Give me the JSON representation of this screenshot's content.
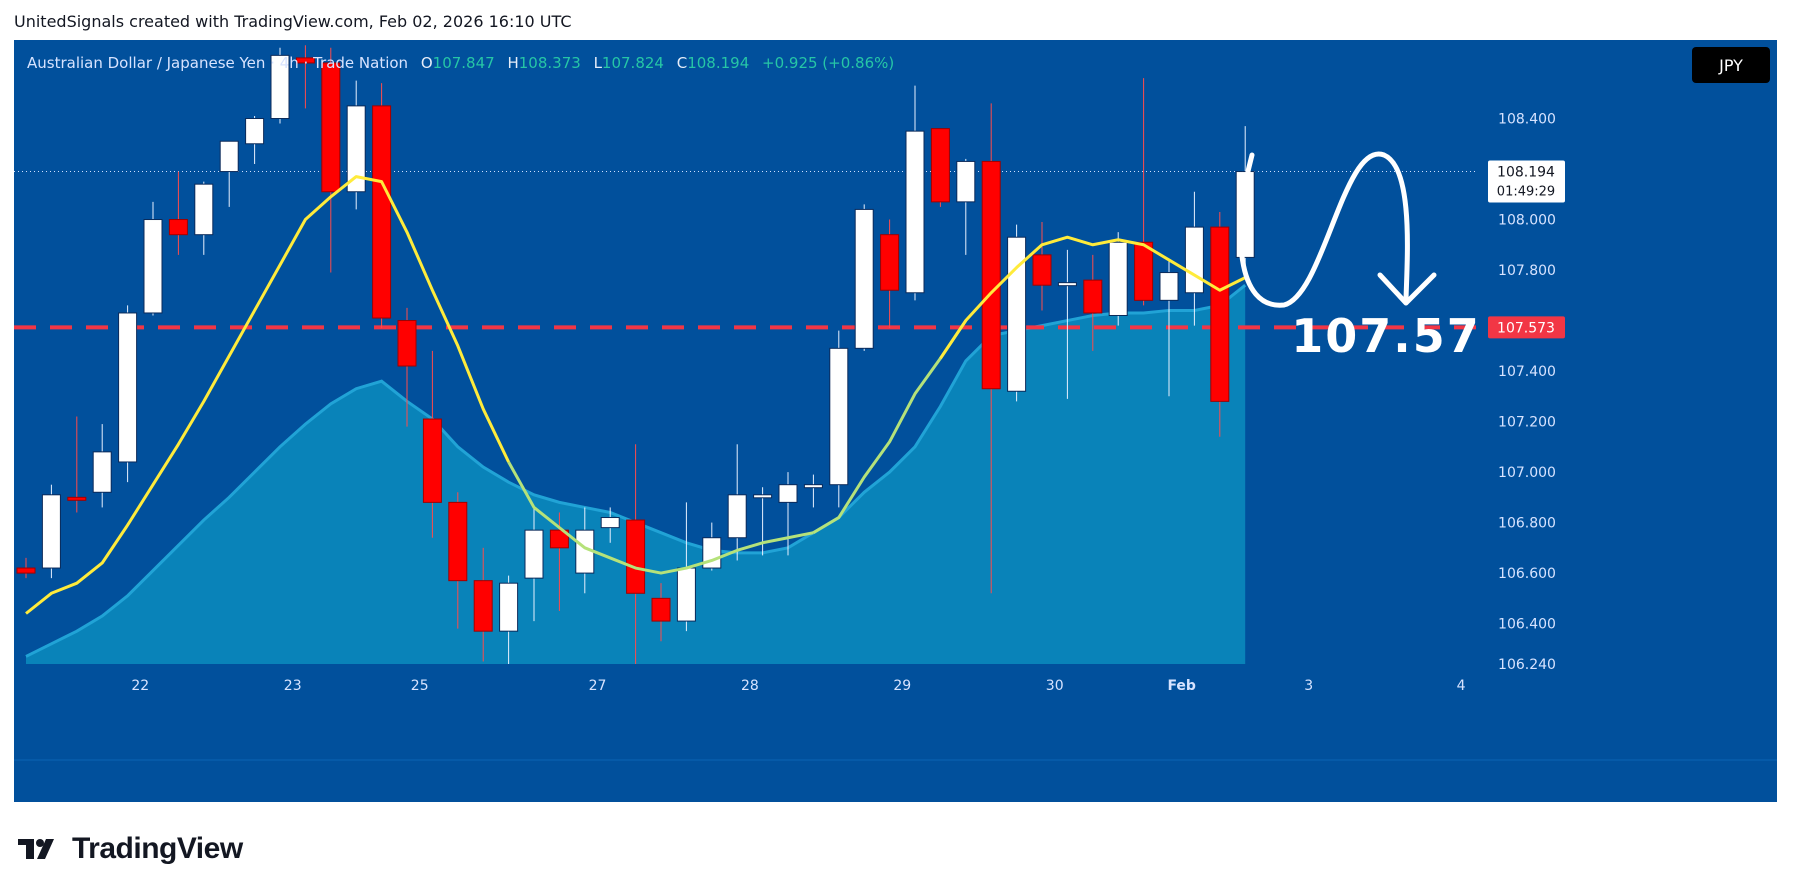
{
  "header": {
    "text": "UnitedSignals created with TradingView.com, Feb 02, 2026 16:10 UTC"
  },
  "legend": {
    "symbol": "Australian Dollar / Japanese Yen · 4h · Trade Nation",
    "open_label": "O",
    "open": "107.847",
    "high_label": "H",
    "high": "108.373",
    "low_label": "L",
    "low": "107.824",
    "close_label": "C",
    "close": "108.194",
    "change": "+0.925 (+0.86%)"
  },
  "currency_button": "JPY",
  "price_label": {
    "price": "108.194",
    "countdown": "01:49:29"
  },
  "level_label": "107.573",
  "annotation_text": "107.57",
  "footer": {
    "logo_text": "TradingView"
  },
  "colors": {
    "background": "#01509c",
    "bull": "#ffffff",
    "bear": "#ff0000",
    "fast_ma": "#ffeb3b",
    "area_fill": "#0a88bd",
    "level_line": "#f23645"
  },
  "chart_data": {
    "type": "candlestick",
    "y_range": [
      106.24,
      108.6
    ],
    "y_ticks": [
      "108.400",
      "108.000",
      "107.800",
      "107.400",
      "107.200",
      "107.000",
      "106.800",
      "106.600",
      "106.400",
      "106.240"
    ],
    "x_ticks": [
      {
        "index": 4.5,
        "label": "22"
      },
      {
        "index": 10.5,
        "label": "23"
      },
      {
        "index": 15.5,
        "label": "25"
      },
      {
        "index": 22.5,
        "label": "27"
      },
      {
        "index": 28.5,
        "label": "28"
      },
      {
        "index": 34.5,
        "label": "29"
      },
      {
        "index": 40.5,
        "label": "30"
      },
      {
        "index": 45.5,
        "label": "Feb"
      },
      {
        "index": 50.5,
        "label": "3"
      },
      {
        "index": 56.5,
        "label": "4"
      }
    ],
    "level": 107.573,
    "candles": [
      {
        "o": 106.62,
        "h": 106.66,
        "l": 106.58,
        "c": 106.6
      },
      {
        "o": 106.62,
        "h": 106.95,
        "l": 106.58,
        "c": 106.91
      },
      {
        "o": 106.9,
        "h": 107.22,
        "l": 106.84,
        "c": 106.89
      },
      {
        "o": 106.92,
        "h": 107.19,
        "l": 106.86,
        "c": 107.08
      },
      {
        "o": 107.04,
        "h": 107.66,
        "l": 106.96,
        "c": 107.63
      },
      {
        "o": 107.63,
        "h": 108.07,
        "l": 107.62,
        "c": 108.0
      },
      {
        "o": 108.0,
        "h": 108.19,
        "l": 107.86,
        "c": 107.94
      },
      {
        "o": 107.94,
        "h": 108.15,
        "l": 107.86,
        "c": 108.14
      },
      {
        "o": 108.19,
        "h": 108.31,
        "l": 108.05,
        "c": 108.31
      },
      {
        "o": 108.3,
        "h": 108.41,
        "l": 108.22,
        "c": 108.4
      },
      {
        "o": 108.4,
        "h": 108.68,
        "l": 108.38,
        "c": 108.65
      },
      {
        "o": 108.64,
        "h": 108.69,
        "l": 108.44,
        "c": 108.62
      },
      {
        "o": 108.62,
        "h": 108.68,
        "l": 107.79,
        "c": 108.11
      },
      {
        "o": 108.11,
        "h": 108.55,
        "l": 108.04,
        "c": 108.45
      },
      {
        "o": 108.45,
        "h": 108.54,
        "l": 107.57,
        "c": 107.61
      },
      {
        "o": 107.6,
        "h": 107.65,
        "l": 107.18,
        "c": 107.42
      },
      {
        "o": 107.21,
        "h": 107.48,
        "l": 106.74,
        "c": 106.88
      },
      {
        "o": 106.88,
        "h": 106.92,
        "l": 106.38,
        "c": 106.57
      },
      {
        "o": 106.57,
        "h": 106.7,
        "l": 106.25,
        "c": 106.37
      },
      {
        "o": 106.37,
        "h": 106.59,
        "l": 106.24,
        "c": 106.56
      },
      {
        "o": 106.58,
        "h": 106.86,
        "l": 106.41,
        "c": 106.77
      },
      {
        "o": 106.77,
        "h": 106.84,
        "l": 106.45,
        "c": 106.7
      },
      {
        "o": 106.6,
        "h": 106.86,
        "l": 106.52,
        "c": 106.77
      },
      {
        "o": 106.78,
        "h": 106.86,
        "l": 106.72,
        "c": 106.82
      },
      {
        "o": 106.81,
        "h": 107.11,
        "l": 106.24,
        "c": 106.52
      },
      {
        "o": 106.5,
        "h": 106.56,
        "l": 106.33,
        "c": 106.41
      },
      {
        "o": 106.41,
        "h": 106.88,
        "l": 106.37,
        "c": 106.62
      },
      {
        "o": 106.62,
        "h": 106.8,
        "l": 106.61,
        "c": 106.74
      },
      {
        "o": 106.74,
        "h": 107.11,
        "l": 106.65,
        "c": 106.91
      },
      {
        "o": 106.9,
        "h": 106.94,
        "l": 106.67,
        "c": 106.91
      },
      {
        "o": 106.88,
        "h": 107.0,
        "l": 106.67,
        "c": 106.95
      },
      {
        "o": 106.94,
        "h": 106.99,
        "l": 106.86,
        "c": 106.95
      },
      {
        "o": 106.95,
        "h": 107.56,
        "l": 106.86,
        "c": 107.49
      },
      {
        "o": 107.49,
        "h": 108.06,
        "l": 107.48,
        "c": 108.04
      },
      {
        "o": 107.94,
        "h": 108.0,
        "l": 107.57,
        "c": 107.72
      },
      {
        "o": 107.71,
        "h": 108.53,
        "l": 107.68,
        "c": 108.35
      },
      {
        "o": 108.36,
        "h": 108.36,
        "l": 108.05,
        "c": 108.07
      },
      {
        "o": 108.07,
        "h": 108.24,
        "l": 107.86,
        "c": 108.23
      },
      {
        "o": 108.23,
        "h": 108.46,
        "l": 106.52,
        "c": 107.33
      },
      {
        "o": 107.32,
        "h": 107.98,
        "l": 107.28,
        "c": 107.93
      },
      {
        "o": 107.86,
        "h": 107.99,
        "l": 107.64,
        "c": 107.74
      },
      {
        "o": 107.74,
        "h": 107.88,
        "l": 107.29,
        "c": 107.75
      },
      {
        "o": 107.76,
        "h": 107.86,
        "l": 107.48,
        "c": 107.63
      },
      {
        "o": 107.62,
        "h": 107.95,
        "l": 107.58,
        "c": 107.91
      },
      {
        "o": 107.91,
        "h": 108.56,
        "l": 107.66,
        "c": 107.68
      },
      {
        "o": 107.68,
        "h": 107.84,
        "l": 107.3,
        "c": 107.79
      },
      {
        "o": 107.71,
        "h": 108.11,
        "l": 107.58,
        "c": 107.97
      },
      {
        "o": 107.97,
        "h": 108.03,
        "l": 107.14,
        "c": 107.28
      },
      {
        "o": 107.85,
        "h": 108.37,
        "l": 107.82,
        "c": 108.19
      }
    ],
    "fast_ma": [
      106.44,
      106.52,
      106.56,
      106.64,
      106.79,
      106.95,
      107.11,
      107.28,
      107.46,
      107.64,
      107.82,
      108.0,
      108.09,
      108.17,
      108.15,
      107.95,
      107.72,
      107.5,
      107.25,
      107.04,
      106.86,
      106.78,
      106.7,
      106.66,
      106.62,
      106.6,
      106.62,
      106.65,
      106.69,
      106.72,
      106.74,
      106.76,
      106.82,
      106.98,
      107.12,
      107.31,
      107.45,
      107.6,
      107.71,
      107.81,
      107.9,
      107.93,
      107.9,
      107.92,
      107.9,
      107.84,
      107.78,
      107.72,
      107.77
    ],
    "area_ma": [
      106.27,
      106.32,
      106.37,
      106.43,
      106.51,
      106.61,
      106.71,
      106.81,
      106.9,
      107.0,
      107.1,
      107.19,
      107.27,
      107.33,
      107.36,
      107.28,
      107.21,
      107.1,
      107.02,
      106.96,
      106.91,
      106.88,
      106.86,
      106.84,
      106.8,
      106.76,
      106.72,
      106.69,
      106.68,
      106.68,
      106.7,
      106.76,
      106.82,
      106.92,
      107.0,
      107.1,
      107.26,
      107.44,
      107.54,
      107.56,
      107.58,
      107.6,
      107.62,
      107.63,
      107.63,
      107.64,
      107.64,
      107.66,
      107.74
    ]
  }
}
